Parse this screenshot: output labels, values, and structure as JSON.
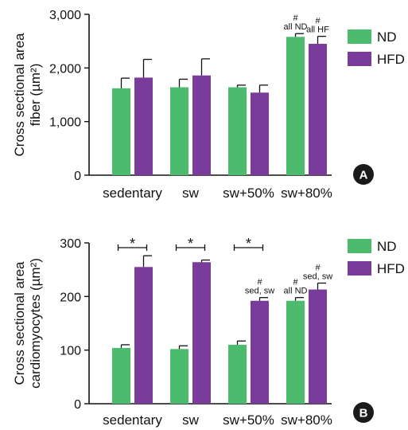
{
  "colors": {
    "nd": "#4dbb6d",
    "hfd": "#7a3c9a",
    "axis": "#111111",
    "badge": "#1a1a1a"
  },
  "chart_data": [
    {
      "type": "bar",
      "panel": "A",
      "ylabel_line1": "Cross sectional area",
      "ylabel_line2": "fiber (µm²)",
      "ylim": [
        0,
        3000
      ],
      "yticks": [
        "0",
        "1,000",
        "2,000",
        "3,000"
      ],
      "ytick_values": [
        0,
        1000,
        2000,
        3000
      ],
      "categories": [
        "sedentary",
        "sw",
        "sw+50%",
        "sw+80%"
      ],
      "series": [
        {
          "name": "ND",
          "values": [
            1620,
            1640,
            1640,
            2580
          ],
          "errors": [
            190,
            150,
            40,
            60
          ]
        },
        {
          "name": "HFD",
          "values": [
            1820,
            1860,
            1540,
            2450
          ],
          "errors": [
            340,
            310,
            140,
            140
          ]
        }
      ],
      "bar_annotations": [
        {
          "category": 3,
          "series": 0,
          "lines": [
            "#",
            "all ND"
          ]
        },
        {
          "category": 3,
          "series": 1,
          "lines": [
            "#",
            "all HF"
          ]
        }
      ],
      "legend": [
        "ND",
        "HFD"
      ],
      "legend_position": "top-right"
    },
    {
      "type": "bar",
      "panel": "B",
      "ylabel_line1": "Cross sectional area",
      "ylabel_line2": "cardiomyocytes (µm²)",
      "ylim": [
        0,
        300
      ],
      "yticks": [
        "0",
        "100",
        "200",
        "300"
      ],
      "ytick_values": [
        0,
        100,
        200,
        300
      ],
      "categories": [
        "sedentary",
        "sw",
        "sw+50%",
        "sw+80%"
      ],
      "series": [
        {
          "name": "ND",
          "values": [
            104,
            102,
            110,
            192
          ],
          "errors": [
            6,
            6,
            7,
            6
          ]
        },
        {
          "name": "HFD",
          "values": [
            255,
            264,
            192,
            213
          ],
          "errors": [
            21,
            4,
            6,
            12
          ]
        }
      ],
      "significance": [
        {
          "category": 0,
          "label": "*"
        },
        {
          "category": 1,
          "label": "*"
        },
        {
          "category": 2,
          "label": "*"
        }
      ],
      "bar_annotations": [
        {
          "category": 2,
          "series": 1,
          "lines": [
            "#",
            "sed, sw"
          ]
        },
        {
          "category": 3,
          "series": 0,
          "lines": [
            "#",
            "all ND"
          ]
        },
        {
          "category": 3,
          "series": 1,
          "lines": [
            "#",
            "sed, sw"
          ]
        }
      ],
      "legend": [
        "ND",
        "HFD"
      ],
      "legend_position": "top-right"
    }
  ]
}
